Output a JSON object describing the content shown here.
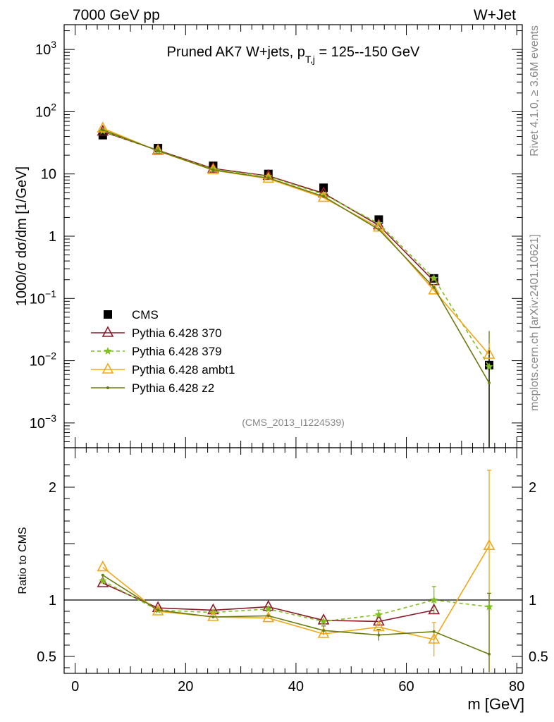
{
  "header": {
    "left": "7000 GeV pp",
    "right": "W+Jet"
  },
  "side_labels": {
    "top": "Rivet 4.1.0, ≥ 3.6M events",
    "bottom": "mcplots.cern.ch [arXiv:2401.10621]"
  },
  "colors": {
    "cms": "#000000",
    "p370": "#8b1a2b",
    "p379": "#7fbf1f",
    "ambt1": "#f0a818",
    "z2": "#6b7a10"
  },
  "chart_data": [
    {
      "type": "line",
      "title_main": "Pruned AK7 W+jets, p",
      "title_sub": "T,j",
      "title_rest": " = 125--150 GeV",
      "ylabel": "1000/σ  dσ/dm [1/GeV]",
      "yscale": "log",
      "ylim": [
        0.0004,
        2500
      ],
      "xlim": [
        -2,
        81
      ],
      "yticks": [
        {
          "v": 0.001,
          "base": "10",
          "exp": "−3"
        },
        {
          "v": 0.01,
          "base": "10",
          "exp": "−2"
        },
        {
          "v": 0.1,
          "base": "10",
          "exp": "−1"
        },
        {
          "v": 1,
          "base": "1",
          "exp": ""
        },
        {
          "v": 10,
          "base": "10",
          "exp": ""
        },
        {
          "v": 100,
          "base": "10",
          "exp": "2"
        },
        {
          "v": 1000,
          "base": "10",
          "exp": "3"
        }
      ],
      "watermark": "(CMS_2013_I1224539)",
      "x": [
        5,
        15,
        25,
        35,
        45,
        55,
        65,
        75
      ],
      "series": [
        {
          "name": "CMS",
          "key": "cms",
          "marker": "square",
          "values": [
            42,
            26,
            13.5,
            10,
            6,
            1.85,
            0.21,
            0.0085
          ]
        },
        {
          "name": "Pythia 6.428 370",
          "key": "p370",
          "marker": "triangle",
          "dash": false,
          "values": [
            48,
            24,
            12.2,
            9.3,
            4.9,
            1.5,
            0.19,
            null
          ]
        },
        {
          "name": "Pythia 6.428 379",
          "key": "p379",
          "marker": "star",
          "dash": true,
          "values": [
            49,
            23.7,
            11.9,
            9.1,
            4.7,
            1.6,
            0.21,
            0.008
          ]
        },
        {
          "name": "Pythia 6.428 ambt1",
          "key": "ambt1",
          "marker": "triangle",
          "dash": false,
          "values": [
            54,
            23.4,
            11.5,
            8.4,
            4.15,
            1.38,
            0.135,
            0.0125
          ]
        },
        {
          "name": "Pythia 6.428 z2",
          "key": "z2",
          "marker": "dot",
          "dash": false,
          "values": [
            51,
            23.6,
            11.6,
            8.6,
            4.35,
            1.28,
            0.15,
            0.0044
          ]
        }
      ]
    },
    {
      "type": "line",
      "ylabel": "Ratio to CMS",
      "xlabel": "m [GeV]",
      "ylim": [
        0.35,
        2.35
      ],
      "xlim": [
        -2,
        81
      ],
      "yticks": [
        0.5,
        1,
        2
      ],
      "ytick_labels": [
        "0.5",
        "1",
        "2"
      ],
      "xticks": [
        0,
        20,
        40,
        60,
        80
      ],
      "xtick_labels": [
        "0",
        "20",
        "40",
        "60",
        "80"
      ],
      "x": [
        5,
        15,
        25,
        35,
        45,
        55,
        65,
        75
      ],
      "series": [
        {
          "name": "Pythia 6.428 370",
          "key": "p370",
          "marker": "triangle",
          "dash": false,
          "values": [
            1.15,
            0.93,
            0.91,
            0.94,
            0.82,
            0.81,
            0.91,
            null
          ]
        },
        {
          "name": "Pythia 6.428 379",
          "key": "p379",
          "marker": "star",
          "dash": true,
          "values": [
            1.17,
            0.91,
            0.89,
            0.92,
            0.81,
            0.87,
            1.0,
            0.94
          ]
        },
        {
          "name": "Pythia 6.428 ambt1",
          "key": "ambt1",
          "marker": "triangle",
          "dash": false,
          "values": [
            1.29,
            0.9,
            0.85,
            0.84,
            0.7,
            0.76,
            0.65,
            1.48
          ]
        },
        {
          "name": "Pythia 6.428 z2",
          "key": "z2",
          "marker": "dot",
          "dash": false,
          "values": [
            1.22,
            0.91,
            0.85,
            0.86,
            0.73,
            0.69,
            0.72,
            0.52
          ]
        }
      ]
    }
  ]
}
